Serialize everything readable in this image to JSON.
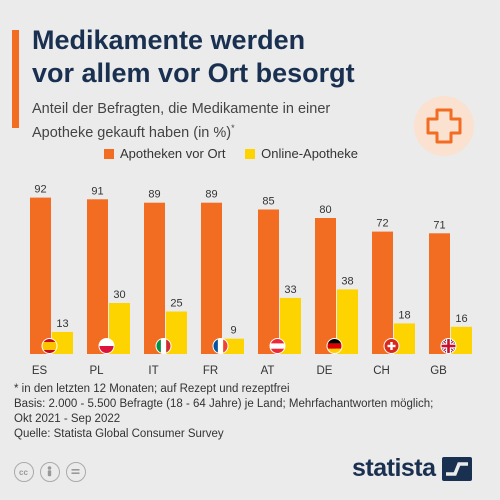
{
  "header": {
    "title_line1": "Medikamente werden",
    "title_line2": "vor allem vor Ort besorgt",
    "subtitle_line1": "Anteil der Befragten, die Medikamente in einer",
    "subtitle_line2": "Apotheke gekauft haben (in %)",
    "subtitle_mark": "*"
  },
  "colors": {
    "accent": "#f26c22",
    "apotheke": "#f26c22",
    "online": "#fdd400",
    "title": "#1a3050",
    "badge_bg": "#fbe1cf",
    "badge_cross": "#f26c22"
  },
  "chart_data": {
    "type": "bar",
    "categories": [
      "ES",
      "PL",
      "IT",
      "FR",
      "AT",
      "DE",
      "CH",
      "GB"
    ],
    "series": [
      {
        "name": "Apotheken vor Ort",
        "values": [
          92,
          91,
          89,
          89,
          85,
          80,
          72,
          71
        ]
      },
      {
        "name": "Online-Apotheke",
        "values": [
          13,
          30,
          25,
          9,
          33,
          38,
          18,
          16
        ]
      }
    ],
    "ylim": [
      0,
      100
    ],
    "grid": false,
    "legend": "top",
    "flag_icons": [
      "spain-flag-icon",
      "poland-flag-icon",
      "italy-flag-icon",
      "france-flag-icon",
      "austria-flag-icon",
      "germany-flag-icon",
      "switzerland-flag-icon",
      "uk-flag-icon"
    ]
  },
  "footnotes": {
    "line1": "* in den letzten 12 Monaten; auf Rezept und rezeptfrei",
    "line2": "Basis: 2.000 - 5.500 Befragte (18 - 64 Jahre) je Land; Mehrfachantworten möglich;",
    "line3": "Okt 2021 - Sep 2022",
    "source": "Quelle: Statista Global Consumer Survey"
  },
  "brand": {
    "name": "statista"
  },
  "icons": {
    "cross": "medical-cross-icon",
    "license": [
      "cc-icon",
      "attribution-icon",
      "no-derivatives-icon"
    ],
    "logo": "statista-logo-icon"
  }
}
